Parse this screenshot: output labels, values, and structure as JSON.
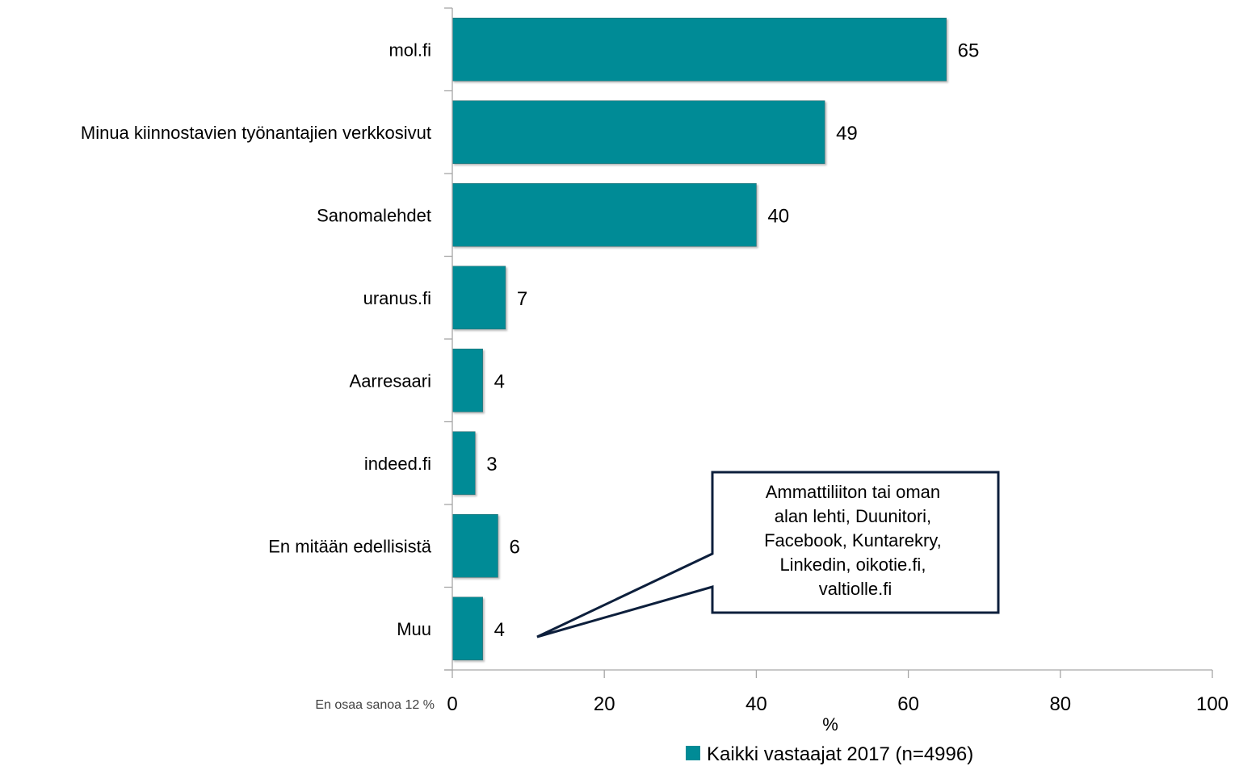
{
  "chart_data": {
    "type": "bar",
    "orientation": "horizontal",
    "categories": [
      "mol.fi",
      "Minua kiinnostavien työnantajien verkkosivut",
      "Sanomalehdet",
      "uranus.fi",
      "Aarresaari",
      "indeed.fi",
      "En mitään edellisistä",
      "Muu"
    ],
    "series": [
      {
        "name": "Kaikki vastaajat 2017 (n=4996)",
        "values": [
          65,
          49,
          40,
          7,
          4,
          3,
          6,
          4
        ],
        "color": "#008B96"
      }
    ],
    "xlim": [
      0,
      100
    ],
    "xticks": [
      0,
      20,
      40,
      60,
      80,
      100
    ],
    "xlabel": "%",
    "grid": false,
    "legend_position": "bottom"
  },
  "side_note": "En osaa sanoa 12 %",
  "callout": {
    "lines": [
      "Ammattiliiton tai oman",
      "alan lehti, Duunitori,",
      "Facebook, Kuntarekry,",
      "Linkedin, oikotie.fi,",
      "valtiolle.fi"
    ],
    "points_to": "Muu"
  }
}
